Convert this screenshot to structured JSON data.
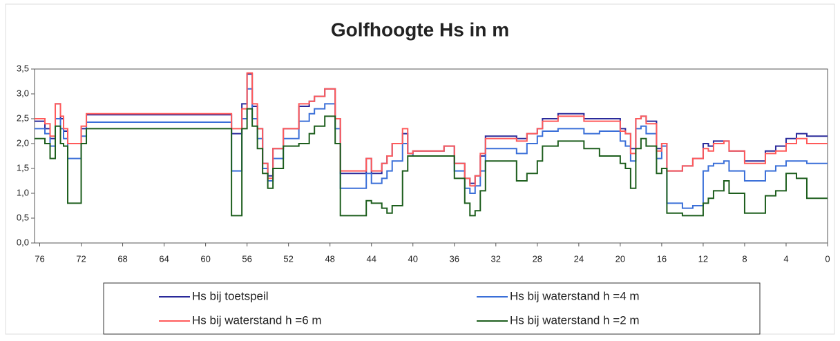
{
  "chart_data": {
    "type": "line",
    "step": "post",
    "title": "Golfhoogte Hs in m",
    "x": [
      76.5,
      75.5,
      75,
      74.5,
      74,
      73.7,
      73.3,
      72,
      71.5,
      57.5,
      56.5,
      56,
      55.5,
      55,
      54.5,
      54,
      53.5,
      52.5,
      51,
      50,
      49.5,
      48.5,
      47.5,
      47,
      44.5,
      44,
      43,
      42.5,
      42,
      41,
      40.5,
      40,
      37,
      36,
      35,
      34.5,
      34,
      33.5,
      33,
      30,
      29,
      28,
      27.5,
      26,
      23.5,
      22,
      20,
      19.5,
      19,
      18.5,
      18,
      17.5,
      16.5,
      16,
      15.5,
      14,
      13,
      12,
      11.5,
      11,
      10,
      9.5,
      8,
      6,
      5,
      4,
      3,
      2,
      0
    ],
    "series": [
      {
        "name": "Hs bij toetspeil",
        "color": "#2a2a9a",
        "values": [
          2.45,
          2.3,
          2.1,
          2.8,
          2.5,
          2.25,
          2.0,
          2.3,
          2.58,
          2.2,
          2.8,
          3.4,
          2.75,
          2.3,
          1.6,
          1.35,
          1.9,
          2.3,
          2.75,
          2.85,
          2.95,
          3.1,
          2.5,
          1.4,
          1.7,
          1.4,
          1.6,
          1.75,
          2.0,
          2.2,
          1.8,
          1.85,
          1.95,
          1.6,
          1.3,
          1.2,
          1.35,
          1.75,
          2.15,
          2.1,
          2.2,
          2.3,
          2.5,
          2.6,
          2.5,
          2.5,
          2.3,
          2.2,
          1.9,
          2.5,
          2.55,
          2.45,
          1.9,
          2.0,
          1.45,
          1.55,
          1.7,
          2.0,
          1.95,
          2.05,
          2.05,
          1.85,
          1.65,
          1.85,
          1.95,
          2.1,
          2.2,
          2.15,
          2.15
        ]
      },
      {
        "name": "Hs bij waterstand h =4 m",
        "color": "#3a6fd8",
        "values": [
          2.3,
          2.2,
          1.95,
          2.5,
          2.3,
          2.1,
          1.7,
          2.15,
          2.43,
          1.45,
          2.5,
          3.1,
          2.5,
          2.1,
          1.5,
          1.25,
          1.7,
          2.1,
          2.45,
          2.6,
          2.7,
          2.8,
          2.3,
          1.1,
          1.4,
          1.2,
          1.3,
          1.45,
          1.65,
          2.0,
          1.8,
          1.75,
          1.75,
          1.45,
          1.1,
          1.0,
          1.15,
          1.45,
          1.9,
          1.8,
          2.0,
          2.15,
          2.25,
          2.3,
          2.2,
          2.25,
          2.05,
          1.95,
          1.65,
          2.3,
          2.35,
          2.2,
          1.7,
          1.95,
          0.8,
          0.7,
          0.75,
          1.45,
          1.55,
          1.6,
          1.65,
          1.45,
          1.25,
          1.45,
          1.55,
          1.65,
          1.65,
          1.6,
          1.6
        ]
      },
      {
        "name": "Hs bij waterstand h =6 m",
        "color": "#ff5a5a",
        "values": [
          2.5,
          2.4,
          2.15,
          2.8,
          2.55,
          2.3,
          2.0,
          2.35,
          2.6,
          2.3,
          2.7,
          3.42,
          2.8,
          2.3,
          1.6,
          1.3,
          1.9,
          2.3,
          2.8,
          2.85,
          2.95,
          3.1,
          2.5,
          1.45,
          1.7,
          1.45,
          1.6,
          1.75,
          2.0,
          2.3,
          1.8,
          1.85,
          1.95,
          1.6,
          1.3,
          1.15,
          1.35,
          1.8,
          2.1,
          2.05,
          2.2,
          2.3,
          2.45,
          2.55,
          2.45,
          2.45,
          2.25,
          2.2,
          1.8,
          2.5,
          2.55,
          2.4,
          1.85,
          2.0,
          1.45,
          1.55,
          1.7,
          1.9,
          1.85,
          2.0,
          2.05,
          1.85,
          1.6,
          1.8,
          1.85,
          2.0,
          2.1,
          2.0,
          2.0
        ]
      },
      {
        "name": "Hs bij waterstand h =2 m",
        "color": "#1d5e1d",
        "values": [
          2.1,
          2.0,
          1.7,
          2.35,
          2.0,
          1.95,
          0.8,
          2.0,
          2.3,
          0.55,
          2.3,
          2.7,
          2.35,
          1.9,
          1.4,
          1.1,
          1.5,
          1.95,
          2.0,
          2.2,
          2.35,
          2.55,
          2.0,
          0.55,
          0.85,
          0.8,
          0.7,
          0.6,
          0.75,
          1.45,
          1.75,
          1.75,
          1.75,
          1.3,
          0.8,
          0.55,
          0.65,
          1.05,
          1.65,
          1.25,
          1.4,
          1.65,
          1.95,
          2.05,
          1.9,
          1.75,
          1.6,
          1.5,
          1.1,
          1.9,
          2.1,
          1.95,
          1.4,
          1.5,
          0.6,
          0.55,
          0.55,
          0.8,
          0.9,
          1.05,
          1.25,
          1.0,
          0.6,
          0.95,
          1.05,
          1.4,
          1.3,
          0.9,
          0.9
        ]
      }
    ],
    "xlim": [
      76.5,
      0
    ],
    "xticks": [
      76,
      72,
      68,
      64,
      60,
      56,
      52,
      48,
      44,
      40,
      36,
      32,
      28,
      24,
      20,
      16,
      12,
      8,
      4,
      0
    ],
    "ylim": [
      0,
      3.5
    ],
    "yticks": [
      {
        "value": 0,
        "label": "0,0"
      },
      {
        "value": 0.5,
        "label": "0,5"
      },
      {
        "value": 1,
        "label": "1,0"
      },
      {
        "value": 1.5,
        "label": "1,5"
      },
      {
        "value": 2,
        "label": "2,0"
      },
      {
        "value": 2.5,
        "label": "2,5"
      },
      {
        "value": 3,
        "label": "3,0"
      },
      {
        "value": 3.5,
        "label": "3,5"
      }
    ]
  }
}
